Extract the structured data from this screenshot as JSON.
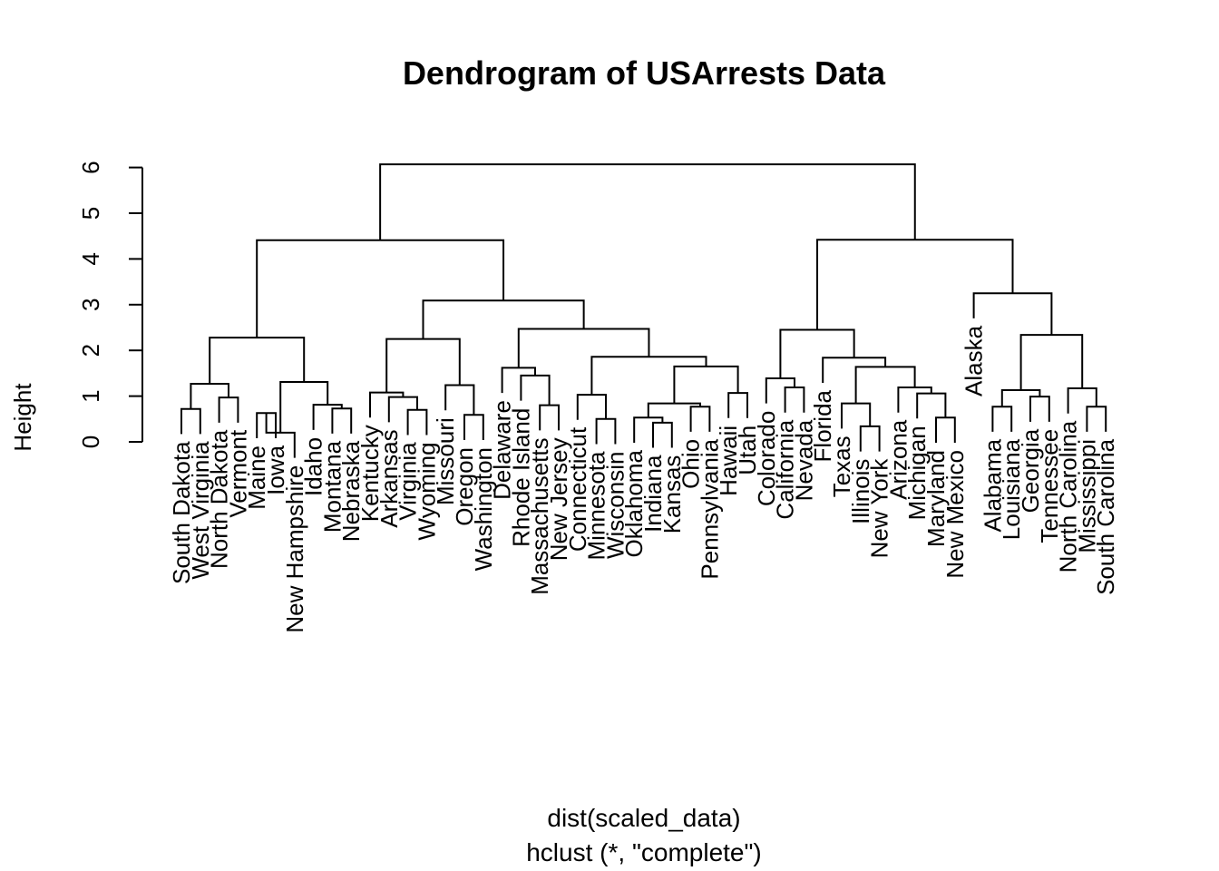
{
  "chart_data": {
    "type": "dendrogram",
    "title": "Dendrogram of USArrests Data",
    "ylabel": "Height",
    "xlabel": "dist(scaled_data)",
    "sub": "hclust (*, \"complete\")",
    "ylim": [
      0,
      6
    ],
    "yticks": [
      0,
      1,
      2,
      3,
      4,
      5,
      6
    ],
    "leaves": [
      {
        "label": "South Dakota",
        "h": 0.72
      },
      {
        "label": "West Virginia",
        "h": 0.72
      },
      {
        "label": "North Dakota",
        "h": 0.97
      },
      {
        "label": "Vermont",
        "h": 0.97
      },
      {
        "label": "Maine",
        "h": 0.63
      },
      {
        "label": "Iowa",
        "h": 0.63
      },
      {
        "label": "New Hampshire",
        "h": 0.2
      },
      {
        "label": "Idaho",
        "h": 0.81
      },
      {
        "label": "Montana",
        "h": 0.73
      },
      {
        "label": "Nebraska",
        "h": 0.73
      },
      {
        "label": "Kentucky",
        "h": 1.08
      },
      {
        "label": "Arkansas",
        "h": 0.98
      },
      {
        "label": "Virginia",
        "h": 0.7
      },
      {
        "label": "Wyoming",
        "h": 0.7
      },
      {
        "label": "Missouri",
        "h": 1.24
      },
      {
        "label": "Oregon",
        "h": 0.59
      },
      {
        "label": "Washington",
        "h": 0.59
      },
      {
        "label": "Delaware",
        "h": 1.62
      },
      {
        "label": "Rhode Island",
        "h": 1.45
      },
      {
        "label": "Massachusetts",
        "h": 0.8
      },
      {
        "label": "New Jersey",
        "h": 0.8
      },
      {
        "label": "Connecticut",
        "h": 1.03
      },
      {
        "label": "Minnesota",
        "h": 0.5
      },
      {
        "label": "Wisconsin",
        "h": 0.5
      },
      {
        "label": "Oklahoma",
        "h": 0.53
      },
      {
        "label": "Indiana",
        "h": 0.42
      },
      {
        "label": "Kansas",
        "h": 0.42
      },
      {
        "label": "Ohio",
        "h": 0.77
      },
      {
        "label": "Pennsylvania",
        "h": 0.77
      },
      {
        "label": "Hawaii",
        "h": 1.07
      },
      {
        "label": "Utah",
        "h": 1.07
      },
      {
        "label": "Colorado",
        "h": 1.39
      },
      {
        "label": "California",
        "h": 1.19
      },
      {
        "label": "Nevada",
        "h": 1.19
      },
      {
        "label": "Florida",
        "h": 1.84
      },
      {
        "label": "Texas",
        "h": 0.84
      },
      {
        "label": "Illinois",
        "h": 0.34
      },
      {
        "label": "New York",
        "h": 0.34
      },
      {
        "label": "Arizona",
        "h": 1.19
      },
      {
        "label": "Michigan",
        "h": 1.06
      },
      {
        "label": "Maryland",
        "h": 0.53
      },
      {
        "label": "New Mexico",
        "h": 0.53
      },
      {
        "label": "Alaska",
        "h": 3.25
      },
      {
        "label": "Alabama",
        "h": 0.77
      },
      {
        "label": "Louisiana",
        "h": 0.77
      },
      {
        "label": "Georgia",
        "h": 0.99
      },
      {
        "label": "Tennessee",
        "h": 0.99
      },
      {
        "label": "North Carolina",
        "h": 1.17
      },
      {
        "label": "Mississippi",
        "h": 0.77
      },
      {
        "label": "South Carolina",
        "h": 0.77
      }
    ],
    "merges": [
      {
        "a": 0,
        "b": 1,
        "h": 0.72
      },
      {
        "a": 2,
        "b": 3,
        "h": 0.97
      },
      {
        "a": 50,
        "b": 51,
        "h": 1.27
      },
      {
        "a": 4,
        "b": 5,
        "h": 0.63
      },
      {
        "a": 53,
        "b": 6,
        "h": 0.2
      },
      {
        "a": 8,
        "b": 9,
        "h": 0.73
      },
      {
        "a": 7,
        "b": 55,
        "h": 0.81
      },
      {
        "a": 54,
        "b": 56,
        "h": 1.31
      },
      {
        "a": 52,
        "b": 57,
        "h": 2.28
      },
      {
        "a": 12,
        "b": 13,
        "h": 0.7
      },
      {
        "a": 11,
        "b": 59,
        "h": 0.98
      },
      {
        "a": 10,
        "b": 60,
        "h": 1.08
      },
      {
        "a": 15,
        "b": 16,
        "h": 0.59
      },
      {
        "a": 14,
        "b": 62,
        "h": 1.24
      },
      {
        "a": 61,
        "b": 63,
        "h": 2.25
      },
      {
        "a": 19,
        "b": 20,
        "h": 0.8
      },
      {
        "a": 18,
        "b": 65,
        "h": 1.45
      },
      {
        "a": 17,
        "b": 66,
        "h": 1.62
      },
      {
        "a": 22,
        "b": 23,
        "h": 0.5
      },
      {
        "a": 21,
        "b": 68,
        "h": 1.03
      },
      {
        "a": 25,
        "b": 26,
        "h": 0.42
      },
      {
        "a": 24,
        "b": 70,
        "h": 0.53
      },
      {
        "a": 27,
        "b": 28,
        "h": 0.77
      },
      {
        "a": 71,
        "b": 72,
        "h": 0.84
      },
      {
        "a": 29,
        "b": 30,
        "h": 1.07
      },
      {
        "a": 73,
        "b": 74,
        "h": 1.65
      },
      {
        "a": 69,
        "b": 75,
        "h": 1.86
      },
      {
        "a": 67,
        "b": 76,
        "h": 2.47
      },
      {
        "a": 64,
        "b": 77,
        "h": 3.09
      },
      {
        "a": 58,
        "b": 78,
        "h": 4.41
      },
      {
        "a": 32,
        "b": 33,
        "h": 1.19
      },
      {
        "a": 31,
        "b": 80,
        "h": 1.39
      },
      {
        "a": 36,
        "b": 37,
        "h": 0.34
      },
      {
        "a": 35,
        "b": 82,
        "h": 0.84
      },
      {
        "a": 40,
        "b": 41,
        "h": 0.53
      },
      {
        "a": 39,
        "b": 84,
        "h": 1.06
      },
      {
        "a": 38,
        "b": 85,
        "h": 1.19
      },
      {
        "a": 83,
        "b": 86,
        "h": 1.64
      },
      {
        "a": 34,
        "b": 87,
        "h": 1.84
      },
      {
        "a": 81,
        "b": 88,
        "h": 2.45
      },
      {
        "a": 43,
        "b": 44,
        "h": 0.77
      },
      {
        "a": 45,
        "b": 46,
        "h": 0.99
      },
      {
        "a": 90,
        "b": 91,
        "h": 1.13
      },
      {
        "a": 48,
        "b": 49,
        "h": 0.77
      },
      {
        "a": 47,
        "b": 93,
        "h": 1.17
      },
      {
        "a": 92,
        "b": 94,
        "h": 2.34
      },
      {
        "a": 42,
        "b": 95,
        "h": 3.25
      },
      {
        "a": 89,
        "b": 96,
        "h": 4.42
      },
      {
        "a": 79,
        "b": 97,
        "h": 6.07
      }
    ]
  }
}
